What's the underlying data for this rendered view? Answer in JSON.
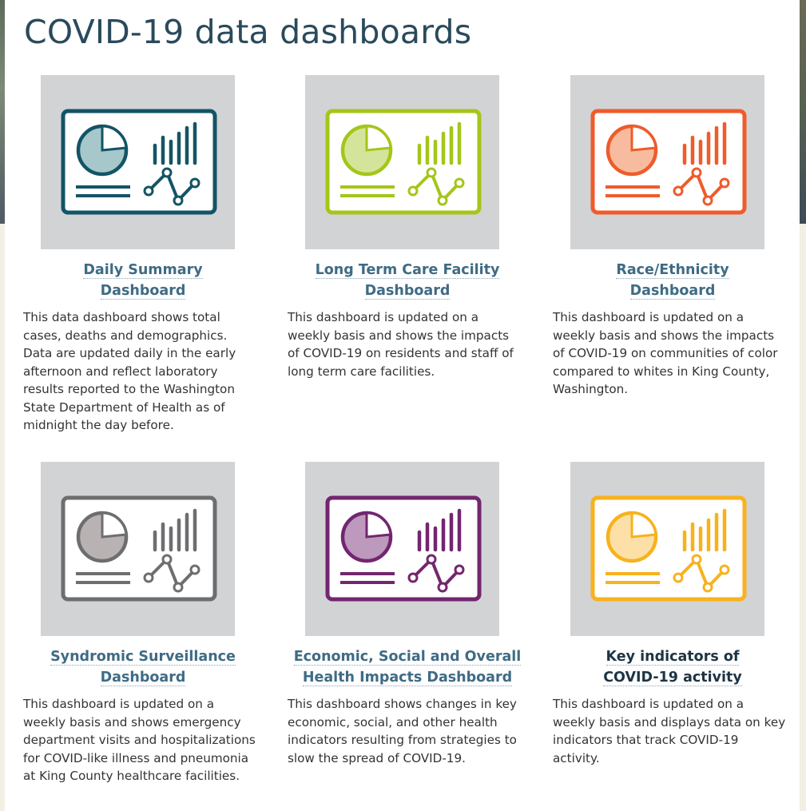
{
  "page": {
    "title": "COVID-19 data dashboards"
  },
  "cards": [
    {
      "title_line1": "Daily Summary",
      "title_line2": "Dashboard",
      "description": "This data dashboard shows total cases, deaths and demographics. Data are updated daily in the early afternoon and reflect laboratory results reported to the Washington State Department of Health as of midnight the day before.",
      "icon": "dashboard-icon",
      "color": "#135466",
      "fill": "#a6c8cb"
    },
    {
      "title_line1": "Long Term Care Facility",
      "title_line2": "Dashboard",
      "description": "This dashboard is updated on a weekly basis and shows the impacts of COVID-19 on residents and staff of long term care facilities.",
      "icon": "dashboard-icon",
      "color": "#a4c619",
      "fill": "#d4e59b"
    },
    {
      "title_line1": "Race/Ethnicity",
      "title_line2": "Dashboard",
      "description": "This dashboard is updated on a weekly basis and shows the impacts of COVID-19 on communities of color compared to whites in King County, Washington.",
      "icon": "dashboard-icon",
      "color": "#ef5b2b",
      "fill": "#f7bc9f"
    },
    {
      "title_line1": "Syndromic Surveillance",
      "title_line2": "Dashboard",
      "description": "This dashboard is updated on a weekly basis and shows emergency department visits and hospitalizations for COVID-like illness and pneumonia at King County healthcare facilities.",
      "icon": "dashboard-icon",
      "color": "#6d6e70",
      "fill": "#b9b2b3"
    },
    {
      "title_line1": "Economic, Social and Overall",
      "title_line2": "Health Impacts Dashboard",
      "description": "This dashboard shows changes in key economic, social, and other health indicators resulting from strategies to slow the spread of COVID-19.",
      "icon": "dashboard-icon",
      "color": "#73266f",
      "fill": "#bd99bd"
    },
    {
      "title_line1": "Key indicators of",
      "title_line2": "COVID-19 activity",
      "description": "This dashboard is updated on a weekly basis and displays data on key indicators that track COVID-19 activity.",
      "icon": "dashboard-icon",
      "color": "#f7b21e",
      "fill": "#fde0a8"
    }
  ]
}
